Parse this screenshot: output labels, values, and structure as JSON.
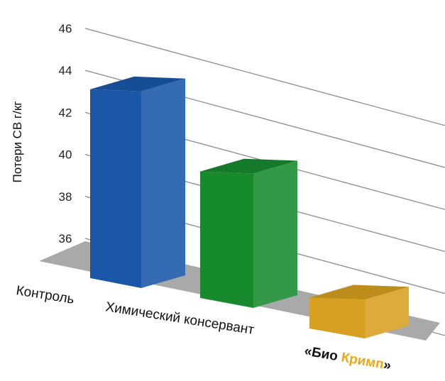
{
  "chart_data": {
    "type": "bar",
    "ylabel": "Потери СВ г/кг",
    "yticks": [
      "36",
      "38",
      "40",
      "42",
      "44",
      "46"
    ],
    "ylim": [
      35,
      46
    ],
    "categories": [
      "Контроль",
      "Химический консервант",
      "«Био Кримп»"
    ],
    "category_label_parts": {
      "bio_prefix": "«Био ",
      "bio_brand": "Кримп",
      "bio_suffix": "»"
    },
    "values": [
      43.5,
      41.0,
      36.4
    ],
    "colors": {
      "bars": [
        "#1a57a8",
        "#178a2e",
        "#d7a020"
      ],
      "floor": "#a9a9a9",
      "grid": "#8c8c8c",
      "brand_text": "#e8a91c"
    },
    "style": "3d-bar",
    "grid": true,
    "legend": "none"
  }
}
